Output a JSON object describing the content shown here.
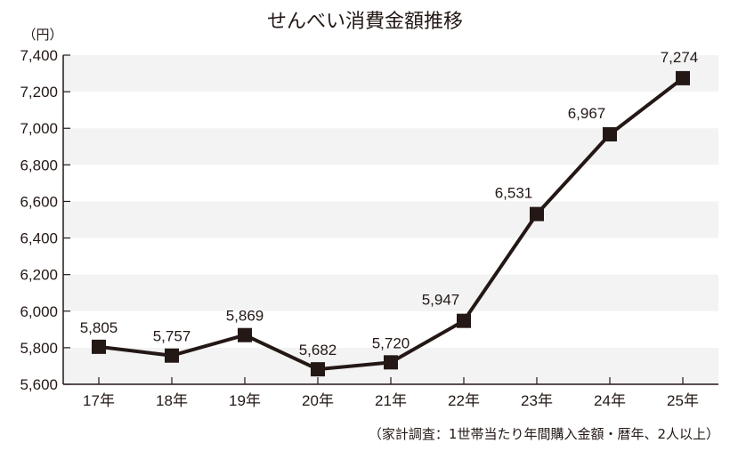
{
  "chart_data": {
    "type": "line",
    "title": "せんべい消費金額推移",
    "ylabel": "（円）",
    "xlabel": "",
    "categories": [
      "17年",
      "18年",
      "19年",
      "20年",
      "21年",
      "22年",
      "23年",
      "24年",
      "25年"
    ],
    "series": [
      {
        "name": "せんべい消費金額",
        "values": [
          5805,
          5757,
          5869,
          5682,
          5720,
          5947,
          6531,
          6967,
          7274
        ]
      }
    ],
    "data_labels": [
      "5,805",
      "5,757",
      "5,869",
      "5,682",
      "5,720",
      "5,947",
      "6,531",
      "6,967",
      "7,274"
    ],
    "ylim": [
      5600,
      7400
    ],
    "yticks": [
      5600,
      5800,
      6000,
      6200,
      6400,
      6600,
      6800,
      7000,
      7200,
      7400
    ],
    "ytick_labels": [
      "5,600",
      "5,800",
      "6,000",
      "6,200",
      "6,400",
      "6,600",
      "6,800",
      "7,000",
      "7,200",
      "7,400"
    ],
    "grid": "alternating horizontal bands",
    "legend": "none",
    "marker": "square",
    "source_note": "（家計調査：1世帯当たり年間購入金額・暦年、2人以上）"
  },
  "colors": {
    "line": "#231815",
    "band": "#f3f3f3",
    "text": "#231815"
  }
}
